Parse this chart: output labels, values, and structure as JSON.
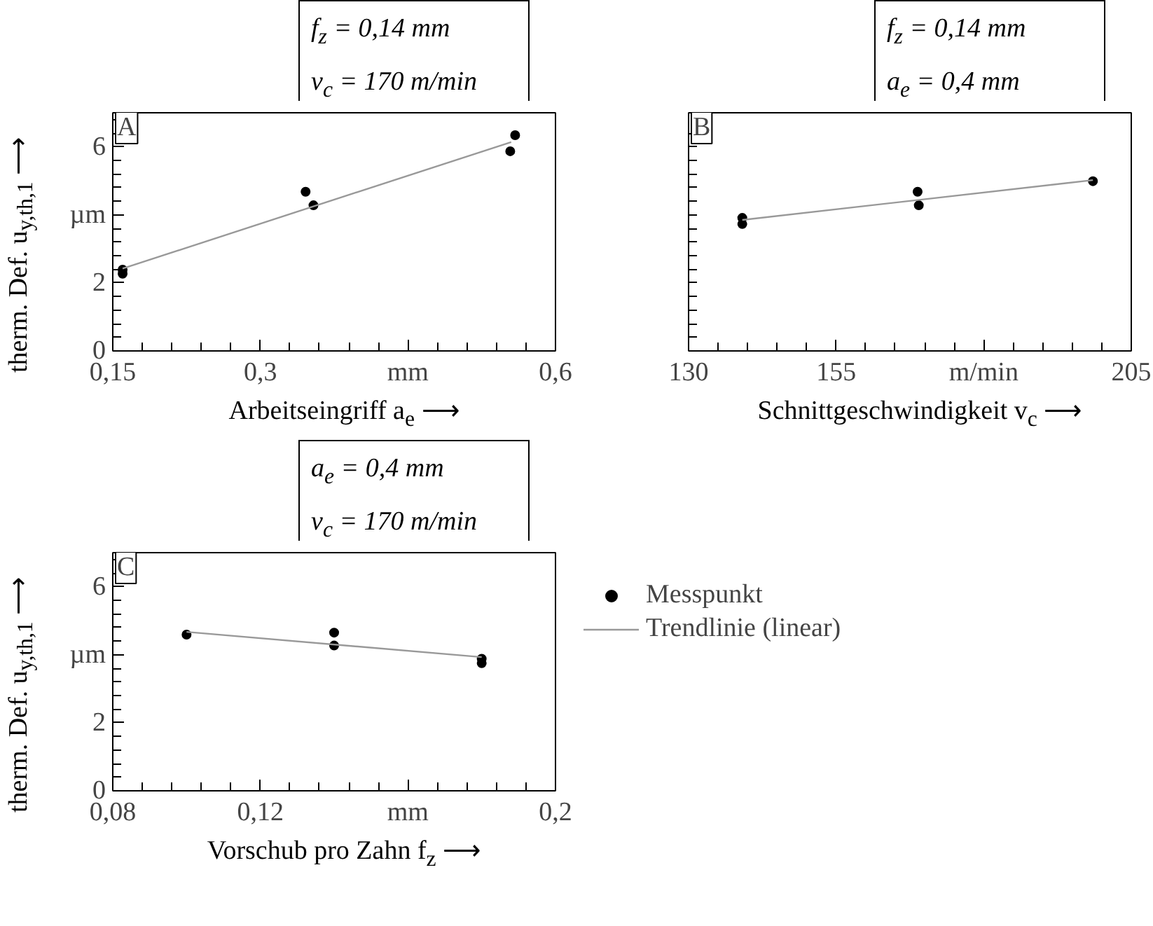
{
  "chart_data": [
    {
      "type": "scatter",
      "marker": "circle",
      "xlabel": "Arbeitseingriff a$_{e}$ ⟶",
      "ylabel": "therm. Def. u$_{y,th,1}$ ⟶",
      "annotations": [
        "A",
        "f$_{z}$ = 0,14 mm",
        "v$_{c}$ = 170 m/min"
      ],
      "xlim": [
        0.15,
        0.6
      ],
      "ylim": [
        0,
        7
      ],
      "xticks": [
        {
          "value": 0.15,
          "label": "0,15"
        },
        {
          "value": 0.18,
          "label": null
        },
        {
          "value": 0.21,
          "label": null
        },
        {
          "value": 0.24,
          "label": null
        },
        {
          "value": 0.27,
          "label": null
        },
        {
          "value": 0.3,
          "label": "0,3"
        },
        {
          "value": 0.33,
          "label": null
        },
        {
          "value": 0.36,
          "label": null
        },
        {
          "value": 0.39,
          "label": null
        },
        {
          "value": 0.42,
          "label": null
        },
        {
          "value": 0.45,
          "label": "mm"
        },
        {
          "value": 0.48,
          "label": null
        },
        {
          "value": 0.51,
          "label": null
        },
        {
          "value": 0.54,
          "label": null
        },
        {
          "value": 0.57,
          "label": null
        },
        {
          "value": 0.6,
          "label": "0,6"
        }
      ],
      "yticks": [
        0,
        {
          "value": 0.4,
          "label": null
        },
        {
          "value": 0.8,
          "label": null
        },
        {
          "value": 1.2,
          "label": null
        },
        {
          "value": 1.6,
          "label": null
        },
        2,
        {
          "value": 2.4,
          "label": null
        },
        {
          "value": 2.8,
          "label": null
        },
        {
          "value": 3.2,
          "label": null
        },
        {
          "value": 3.6,
          "label": null
        },
        {
          "value": 4,
          "label": "µm"
        },
        {
          "value": 4.4,
          "label": null
        },
        {
          "value": 4.8,
          "label": null
        },
        {
          "value": 5.2,
          "label": null
        },
        {
          "value": 5.6,
          "label": null
        },
        6,
        {
          "value": 6.4,
          "label": null
        },
        {
          "value": 6.8,
          "label": null
        }
      ],
      "series": [
        {
          "color": "#000000",
          "x": [
            0.16,
            0.16,
            0.346,
            0.354,
            0.554,
            0.559
          ],
          "values": [
            2.39,
            2.27,
            4.68,
            4.28,
            5.87,
            6.34
          ]
        },
        {
          "type": "line",
          "marker": "none",
          "color": "#999999",
          "x": [
            0.16,
            0.555
          ],
          "values": [
            2.42,
            6.14
          ]
        }
      ]
    },
    {
      "type": "scatter",
      "marker": "circle",
      "xlabel": "Schnittgeschwindigkeit v$_{c}$ ⟶",
      "tick_labels": "x",
      "annotations": [
        "B",
        "f$_{z}$ = 0,14 mm",
        "a$_{e}$ = 0,4 mm"
      ],
      "xlim": [
        130,
        205
      ],
      "ylim": [
        0,
        7
      ],
      "xticks": [
        130,
        {
          "value": 135,
          "label": null
        },
        {
          "value": 140,
          "label": null
        },
        {
          "value": 145,
          "label": null
        },
        {
          "value": 150,
          "label": null
        },
        155,
        {
          "value": 160,
          "label": null
        },
        {
          "value": 165,
          "label": null
        },
        {
          "value": 170,
          "label": null
        },
        {
          "value": 175,
          "label": null
        },
        {
          "value": 180,
          "label": "m/min"
        },
        {
          "value": 185,
          "label": null
        },
        {
          "value": 190,
          "label": null
        },
        {
          "value": 195,
          "label": null
        },
        {
          "value": 200,
          "label": null
        },
        205
      ],
      "yticks": [
        {
          "value": 0.4,
          "label": null
        },
        {
          "value": 0.8,
          "label": null
        },
        {
          "value": 1.2,
          "label": null
        },
        {
          "value": 1.6,
          "label": null
        },
        {
          "value": 2,
          "label": null
        },
        {
          "value": 2.4,
          "label": null
        },
        {
          "value": 2.8,
          "label": null
        },
        {
          "value": 3.2,
          "label": null
        },
        {
          "value": 3.6,
          "label": null
        },
        {
          "value": 4,
          "label": null
        },
        {
          "value": 4.4,
          "label": null
        },
        {
          "value": 4.8,
          "label": null
        },
        {
          "value": 5.2,
          "label": null
        },
        {
          "value": 5.6,
          "label": null
        },
        {
          "value": 6,
          "label": null
        },
        {
          "value": 6.4,
          "label": null
        }
      ],
      "series": [
        {
          "color": "#000000",
          "x": [
            139.1,
            139.1,
            168.8,
            169,
            198.5
          ],
          "values": [
            3.91,
            3.73,
            4.68,
            4.28,
            4.99
          ]
        },
        {
          "type": "line",
          "marker": "none",
          "color": "#999999",
          "x": [
            139.1,
            198.5
          ],
          "values": [
            3.85,
            5.02
          ]
        }
      ]
    },
    {
      "type": "scatter",
      "marker": "circle",
      "xlabel": "Vorschub pro Zahn f$_{z}$ ⟶",
      "ylabel": "therm. Def. u$_{y,th,1}$ ⟶",
      "legend": "right",
      "annotations": [
        "C",
        "a$_{e}$ = 0,4 mm",
        "v$_{c}$ = 170 m/min"
      ],
      "xlim": [
        0.08,
        0.2
      ],
      "ylim": [
        0,
        7
      ],
      "xticks": [
        {
          "value": 0.08,
          "label": "0,08"
        },
        {
          "value": 0.088,
          "label": null
        },
        {
          "value": 0.096,
          "label": null
        },
        {
          "value": 0.104,
          "label": null
        },
        {
          "value": 0.112,
          "label": null
        },
        {
          "value": 0.12,
          "label": "0,12"
        },
        {
          "value": 0.128,
          "label": null
        },
        {
          "value": 0.136,
          "label": null
        },
        {
          "value": 0.144,
          "label": null
        },
        {
          "value": 0.152,
          "label": null
        },
        {
          "value": 0.16,
          "label": "mm"
        },
        {
          "value": 0.168,
          "label": null
        },
        {
          "value": 0.176,
          "label": null
        },
        {
          "value": 0.184,
          "label": null
        },
        {
          "value": 0.192,
          "label": null
        },
        {
          "value": 0.2,
          "label": "0,2"
        }
      ],
      "yticks": [
        0,
        {
          "value": 0.4,
          "label": null
        },
        {
          "value": 0.8,
          "label": null
        },
        {
          "value": 1.2,
          "label": null
        },
        {
          "value": 1.6,
          "label": null
        },
        2,
        {
          "value": 2.4,
          "label": null
        },
        {
          "value": 2.8,
          "label": null
        },
        {
          "value": 3.2,
          "label": null
        },
        {
          "value": 3.6,
          "label": null
        },
        {
          "value": 4,
          "label": "µm"
        },
        {
          "value": 4.4,
          "label": null
        },
        {
          "value": 4.8,
          "label": null
        },
        {
          "value": 5.2,
          "label": null
        },
        {
          "value": 5.6,
          "label": null
        },
        6,
        {
          "value": 6.4,
          "label": null
        },
        {
          "value": 6.8,
          "label": null
        }
      ],
      "series": [
        {
          "name": "Messpunkt",
          "color": "#000000",
          "x": [
            0.1,
            0.14,
            0.14,
            0.18,
            0.18
          ],
          "values": [
            4.59,
            4.65,
            4.27,
            3.88,
            3.75
          ]
        },
        {
          "type": "line",
          "marker": "none",
          "name": "Trendlinie (linear)",
          "color": "#999999",
          "x": [
            0.1,
            0.18
          ],
          "values": [
            4.67,
            3.93
          ]
        }
      ]
    }
  ]
}
